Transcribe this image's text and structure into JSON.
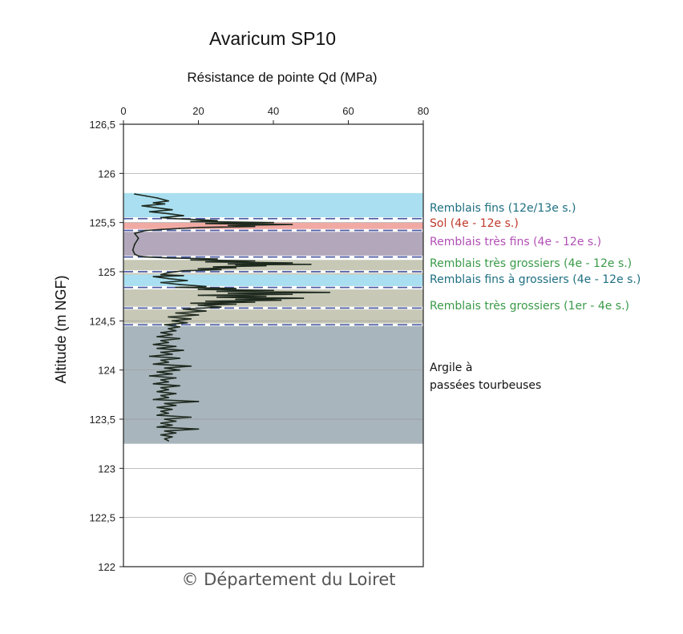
{
  "chart_data": {
    "type": "line",
    "title": "Avaricum SP10",
    "subtitle": "Résistance de pointe Qd (MPa)",
    "xlabel": "Résistance de pointe Qd (MPa)",
    "ylabel": "Altitude (m NGF)",
    "xlim": [
      0,
      80
    ],
    "ylim": [
      122,
      126.5
    ],
    "x_ticks": [
      "0",
      "20",
      "40",
      "60",
      "80"
    ],
    "y_ticks": [
      "126,5",
      "126",
      "125,5",
      "125",
      "124,5",
      "124",
      "123,5",
      "123",
      "122,5",
      "122"
    ],
    "grid": "horizontal",
    "layers": [
      {
        "label": "Remblais fins (12e/13e s.)",
        "top": 125.8,
        "bottom": 125.55,
        "color": "#a9dff0",
        "label_color": "#1f6f82"
      },
      {
        "label": "Sol (4e - 12e s.)",
        "top": 125.5,
        "bottom": 125.42,
        "color": "#f1a9a4",
        "label_color": "#c0392b"
      },
      {
        "label": "Remblais très fins (4e - 12e s.)",
        "top": 125.42,
        "bottom": 125.15,
        "color": "#b3a8bb",
        "label_color": "#b14fb5"
      },
      {
        "label": "Remblais très grossiers (4e - 12e s.)",
        "top": 125.12,
        "bottom": 124.97,
        "color": "#c7c8b6",
        "label_color": "#3a9a48"
      },
      {
        "label": "Remblais fins à grossiers (4e - 12e s.)",
        "top": 124.97,
        "bottom": 124.84,
        "color": "#a9dff0",
        "label_color": "#1f6f82"
      },
      {
        "label": "Remblais très grossiers (1er - 4e s.)",
        "top": 124.82,
        "bottom": 124.46,
        "color": "#c7c8b6",
        "label_color": "#3a9a48"
      },
      {
        "label": "Argile à passées tourbeuses",
        "top": 124.45,
        "bottom": 123.25,
        "color": "#a8b5bc",
        "label_color": "#111111"
      }
    ],
    "dashed_boundaries": [
      125.54,
      125.42,
      125.15,
      125.0,
      124.84,
      124.63,
      124.46
    ],
    "series": [
      {
        "color": "#1f2a1f",
        "points": [
          [
            3,
            125.79
          ],
          [
            6,
            125.77
          ],
          [
            9,
            125.75
          ],
          [
            12,
            125.72
          ],
          [
            8,
            125.7
          ],
          [
            11,
            125.69
          ],
          [
            5,
            125.67
          ],
          [
            9,
            125.65
          ],
          [
            13,
            125.63
          ],
          [
            7,
            125.61
          ],
          [
            12,
            125.59
          ],
          [
            16,
            125.57
          ],
          [
            10,
            125.55
          ],
          [
            14,
            125.54
          ],
          [
            25,
            125.52
          ],
          [
            18,
            125.51
          ],
          [
            40,
            125.5
          ],
          [
            22,
            125.49
          ],
          [
            45,
            125.48
          ],
          [
            28,
            125.47
          ],
          [
            35,
            125.46
          ],
          [
            20,
            125.45
          ],
          [
            15,
            125.44
          ],
          [
            10,
            125.43
          ],
          [
            6,
            125.42
          ],
          [
            3,
            125.39
          ],
          [
            4,
            125.34
          ],
          [
            3,
            125.28
          ],
          [
            2.5,
            125.22
          ],
          [
            3,
            125.18
          ],
          [
            4,
            125.16
          ],
          [
            6,
            125.15
          ],
          [
            12,
            125.14
          ],
          [
            25,
            125.13
          ],
          [
            18,
            125.12
          ],
          [
            35,
            125.11
          ],
          [
            22,
            125.1
          ],
          [
            45,
            125.09
          ],
          [
            28,
            125.08
          ],
          [
            50,
            125.075
          ],
          [
            30,
            125.07
          ],
          [
            38,
            125.06
          ],
          [
            24,
            125.05
          ],
          [
            30,
            125.04
          ],
          [
            20,
            125.03
          ],
          [
            26,
            125.02
          ],
          [
            16,
            125.01
          ],
          [
            14,
            125.0
          ],
          [
            12,
            124.99
          ],
          [
            10,
            124.97
          ],
          [
            16,
            124.96
          ],
          [
            8,
            124.95
          ],
          [
            12,
            124.93
          ],
          [
            17,
            124.91
          ],
          [
            10,
            124.89
          ],
          [
            15,
            124.87
          ],
          [
            22,
            124.85
          ],
          [
            14,
            124.84
          ],
          [
            30,
            124.83
          ],
          [
            20,
            124.82
          ],
          [
            40,
            124.81
          ],
          [
            25,
            124.8
          ],
          [
            55,
            124.79
          ],
          [
            28,
            124.78
          ],
          [
            45,
            124.77
          ],
          [
            20,
            124.76
          ],
          [
            38,
            124.75
          ],
          [
            25,
            124.74
          ],
          [
            48,
            124.73
          ],
          [
            30,
            124.72
          ],
          [
            42,
            124.71
          ],
          [
            22,
            124.7
          ],
          [
            35,
            124.69
          ],
          [
            18,
            124.68
          ],
          [
            30,
            124.67
          ],
          [
            20,
            124.66
          ],
          [
            26,
            124.64
          ],
          [
            16,
            124.62
          ],
          [
            22,
            124.6
          ],
          [
            14,
            124.58
          ],
          [
            20,
            124.56
          ],
          [
            12,
            124.54
          ],
          [
            18,
            124.52
          ],
          [
            13,
            124.5
          ],
          [
            17,
            124.48
          ],
          [
            11,
            124.46
          ],
          [
            15,
            124.44
          ],
          [
            12,
            124.42
          ],
          [
            14,
            124.4
          ],
          [
            10,
            124.38
          ],
          [
            13,
            124.36
          ],
          [
            9,
            124.34
          ],
          [
            15,
            124.32
          ],
          [
            10,
            124.3
          ],
          [
            12,
            124.28
          ],
          [
            8,
            124.26
          ],
          [
            14,
            124.24
          ],
          [
            9,
            124.22
          ],
          [
            16,
            124.2
          ],
          [
            10,
            124.18
          ],
          [
            13,
            124.16
          ],
          [
            7,
            124.14
          ],
          [
            15,
            124.12
          ],
          [
            10,
            124.1
          ],
          [
            12,
            124.08
          ],
          [
            8,
            124.06
          ],
          [
            18,
            124.04
          ],
          [
            11,
            124.02
          ],
          [
            15,
            124.0
          ],
          [
            9,
            123.98
          ],
          [
            13,
            123.96
          ],
          [
            7,
            123.94
          ],
          [
            14,
            123.92
          ],
          [
            10,
            123.9
          ],
          [
            12,
            123.88
          ],
          [
            8,
            123.86
          ],
          [
            15,
            123.84
          ],
          [
            10,
            123.82
          ],
          [
            12,
            123.8
          ],
          [
            9,
            123.78
          ],
          [
            14,
            123.76
          ],
          [
            10,
            123.74
          ],
          [
            12,
            123.72
          ],
          [
            8,
            123.7
          ],
          [
            20,
            123.68
          ],
          [
            11,
            123.66
          ],
          [
            14,
            123.64
          ],
          [
            9,
            123.62
          ],
          [
            13,
            123.6
          ],
          [
            10,
            123.58
          ],
          [
            12,
            123.56
          ],
          [
            9,
            123.54
          ],
          [
            18,
            123.52
          ],
          [
            11,
            123.5
          ],
          [
            14,
            123.48
          ],
          [
            10,
            123.46
          ],
          [
            13,
            123.44
          ],
          [
            9,
            123.42
          ],
          [
            20,
            123.4
          ],
          [
            11,
            123.38
          ],
          [
            14,
            123.36
          ],
          [
            10,
            123.34
          ],
          [
            13,
            123.32
          ],
          [
            11,
            123.3
          ],
          [
            12,
            123.28
          ]
        ]
      }
    ]
  },
  "credit": "© Département du Loiret"
}
